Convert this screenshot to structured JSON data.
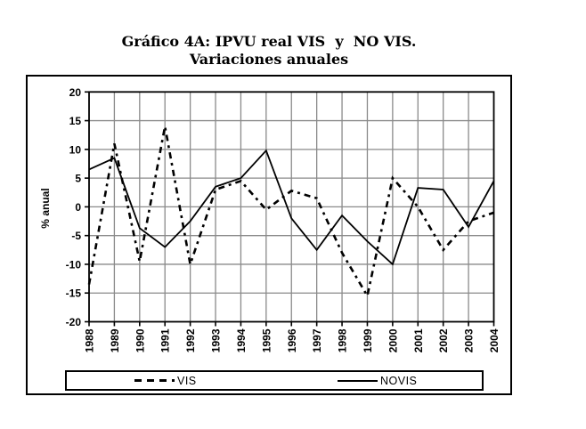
{
  "chart_data": {
    "type": "line",
    "title": "Gráfico 4A: IPVU real VIS  y  NO VIS.",
    "subtitle": "Variaciones anuales",
    "ylabel": "% anual",
    "x": [
      1988,
      1989,
      1990,
      1991,
      1992,
      1993,
      1994,
      1995,
      1996,
      1997,
      1998,
      1999,
      2000,
      2001,
      2002,
      2003,
      2004
    ],
    "series": [
      {
        "name": "VIS",
        "style": "dashed",
        "color": "#000000",
        "values": [
          -13.5,
          11,
          -9.5,
          14,
          -10,
          3,
          4.5,
          -0.5,
          2.8,
          1.5,
          -8,
          -15.5,
          5,
          0,
          -7.5,
          -2.5,
          -1
        ]
      },
      {
        "name": "NOVIS",
        "style": "solid",
        "color": "#000000",
        "values": [
          6.5,
          8.5,
          -3.7,
          -7,
          -2.5,
          3.5,
          5,
          9.8,
          -2,
          -7.5,
          -1.5,
          -6,
          -10,
          3.3,
          3,
          -3.5,
          4.5
        ]
      }
    ],
    "ylim": [
      -20,
      20
    ],
    "yticks": [
      20,
      15,
      10,
      5,
      0,
      -5,
      -10,
      -15,
      -20
    ],
    "grid": true,
    "grid_color": "#8a8a8a",
    "legend_position": "bottom"
  }
}
